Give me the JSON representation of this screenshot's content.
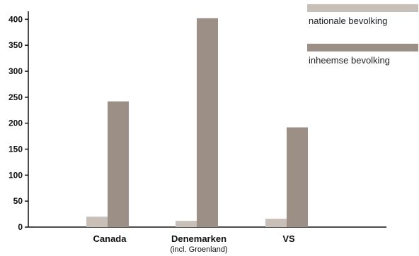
{
  "chart_data": {
    "type": "bar",
    "categories": [
      "Canada",
      "Denemarken",
      "VS"
    ],
    "category_sublabels": [
      "",
      "(incl. Groenland)",
      ""
    ],
    "series": [
      {
        "name": "nationale bevolking",
        "values": [
          20,
          12,
          16
        ],
        "color": "#c8c0b8"
      },
      {
        "name": "inheemse bevolking",
        "values": [
          242,
          402,
          192
        ],
        "color": "#9b8f86"
      }
    ],
    "ylim": [
      0,
      410
    ],
    "yticks": [
      0,
      50,
      100,
      150,
      200,
      250,
      300,
      350,
      400
    ],
    "legend_position": "top-right",
    "grid": false
  }
}
